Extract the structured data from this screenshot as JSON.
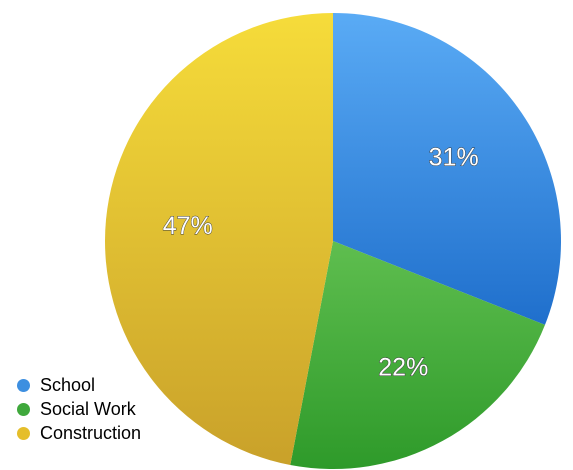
{
  "chart_data": {
    "type": "pie",
    "categories": [
      "School",
      "Social Work",
      "Construction"
    ],
    "values": [
      31,
      22,
      47
    ],
    "labels": [
      "31%",
      "22%",
      "47%"
    ],
    "colors": [
      "#3d8fe0",
      "#3fa83c",
      "#e5be2a"
    ],
    "title": "",
    "legend_position": "bottom-left"
  },
  "legend": {
    "items": [
      {
        "label": "School",
        "color": "#3d8fe0"
      },
      {
        "label": "Social Work",
        "color": "#3fa83c"
      },
      {
        "label": "Construction",
        "color": "#e5be2a"
      }
    ]
  }
}
